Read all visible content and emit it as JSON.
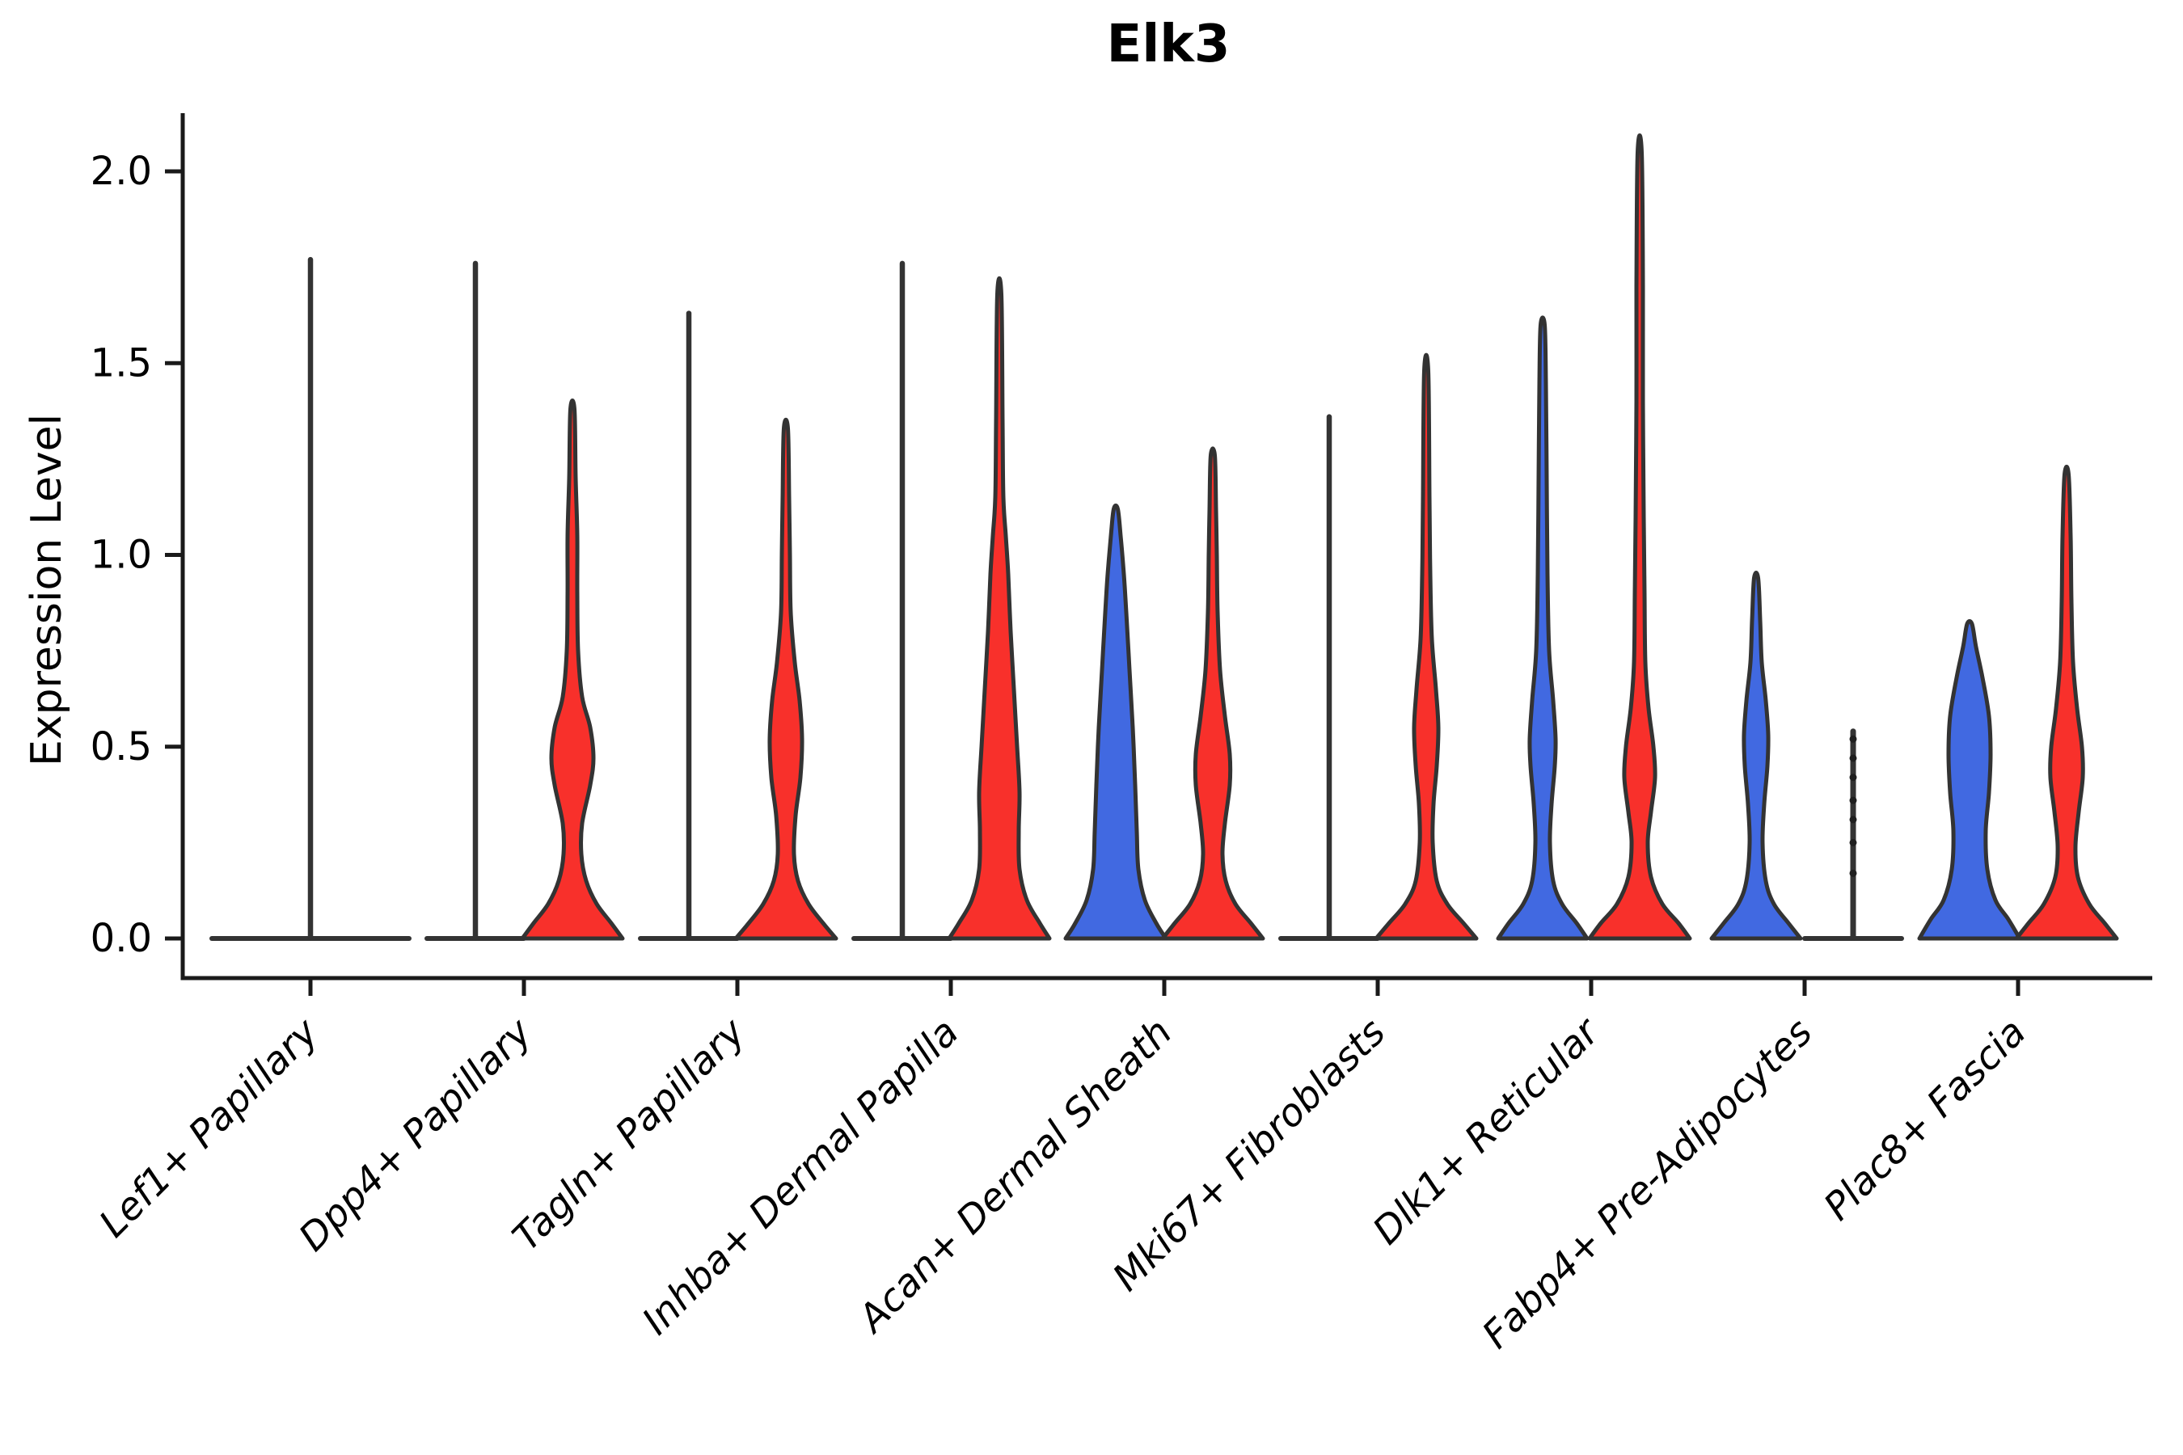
{
  "chart_data": {
    "type": "violin",
    "title": "Elk3",
    "ylabel": "Expression Level",
    "xlabel": "",
    "ylim": [
      0.0,
      2.0
    ],
    "grid": false,
    "legend": "none",
    "yticks": [
      {
        "value": 0.0,
        "label": "0.0"
      },
      {
        "value": 0.5,
        "label": "0.5"
      },
      {
        "value": 1.0,
        "label": "1.0"
      },
      {
        "value": 1.5,
        "label": "1.5"
      },
      {
        "value": 2.0,
        "label": "2.0"
      }
    ],
    "palette": {
      "red": "#F8302B",
      "blue": "#4169E1",
      "outline": "#333333",
      "axis": "#1a1a1a"
    },
    "categories": [
      "Lef1+ Papillary",
      "Dpp4+ Papillary",
      "Tagln+ Papillary",
      "Inhba+ Dermal Papilla",
      "Acan+ Dermal Sheath",
      "Mki67+ Fibroblasts",
      "Dlk1+ Reticular",
      "Fabp4+ Pre-Adipocytes",
      "Plac8+ Fascia"
    ],
    "groups": [
      {
        "category": "Lef1+ Papillary",
        "violins": [
          {
            "position": "center",
            "offset": 0,
            "half_width": 122,
            "type": "flat-spike",
            "color": "outline",
            "max": 1.77
          }
        ]
      },
      {
        "category": "Dpp4+ Papillary",
        "violins": [
          {
            "position": "left",
            "offset": -60,
            "half_width": 60,
            "type": "flat-spike",
            "color": "outline",
            "max": 1.76
          },
          {
            "position": "right",
            "offset": 60,
            "half_width": 62,
            "type": "violin",
            "color": "red",
            "max": 1.38,
            "profile": [
              [
                0,
                62
              ],
              [
                0.04,
                48
              ],
              [
                0.09,
                30
              ],
              [
                0.15,
                17
              ],
              [
                0.22,
                11
              ],
              [
                0.3,
                12
              ],
              [
                0.4,
                22
              ],
              [
                0.47,
                26
              ],
              [
                0.55,
                22
              ],
              [
                0.63,
                12
              ],
              [
                0.75,
                7
              ],
              [
                0.9,
                6
              ],
              [
                1.05,
                6
              ],
              [
                1.2,
                4
              ],
              [
                1.38,
                2.5
              ]
            ]
          }
        ]
      },
      {
        "category": "Tagln+ Papillary",
        "violins": [
          {
            "position": "left",
            "offset": -60,
            "half_width": 60,
            "type": "flat-spike",
            "color": "outline",
            "max": 1.63
          },
          {
            "position": "right",
            "offset": 60,
            "half_width": 62,
            "type": "violin",
            "color": "red",
            "max": 1.33,
            "profile": [
              [
                0,
                62
              ],
              [
                0.04,
                46
              ],
              [
                0.09,
                28
              ],
              [
                0.15,
                15
              ],
              [
                0.22,
                10
              ],
              [
                0.32,
                12
              ],
              [
                0.42,
                18
              ],
              [
                0.52,
                20
              ],
              [
                0.62,
                17
              ],
              [
                0.72,
                11
              ],
              [
                0.85,
                6
              ],
              [
                1.0,
                5
              ],
              [
                1.15,
                4
              ],
              [
                1.33,
                2.5
              ]
            ]
          }
        ]
      },
      {
        "category": "Inhba+ Dermal Papilla",
        "violins": [
          {
            "position": "left",
            "offset": -60,
            "half_width": 60,
            "type": "flat-spike",
            "color": "outline",
            "max": 1.76
          },
          {
            "position": "right",
            "offset": 60,
            "half_width": 62,
            "type": "violin",
            "color": "red",
            "max": 1.68,
            "profile": [
              [
                0,
                62
              ],
              [
                0.04,
                50
              ],
              [
                0.1,
                34
              ],
              [
                0.18,
                25
              ],
              [
                0.28,
                24
              ],
              [
                0.38,
                25
              ],
              [
                0.5,
                22
              ],
              [
                0.65,
                18
              ],
              [
                0.8,
                14
              ],
              [
                0.95,
                11
              ],
              [
                1.05,
                8
              ],
              [
                1.15,
                5
              ],
              [
                1.35,
                4
              ],
              [
                1.68,
                2.5
              ]
            ]
          }
        ]
      },
      {
        "category": "Acan+ Dermal Sheath",
        "violins": [
          {
            "position": "left",
            "offset": -60,
            "half_width": 62,
            "type": "violin",
            "color": "blue",
            "max": 1.12,
            "profile": [
              [
                0,
                62
              ],
              [
                0.04,
                50
              ],
              [
                0.1,
                36
              ],
              [
                0.18,
                28
              ],
              [
                0.28,
                26
              ],
              [
                0.4,
                24
              ],
              [
                0.55,
                21
              ],
              [
                0.7,
                17
              ],
              [
                0.85,
                13
              ],
              [
                0.95,
                10
              ],
              [
                1.05,
                6
              ],
              [
                1.12,
                2.5
              ]
            ]
          },
          {
            "position": "right",
            "offset": 60,
            "half_width": 62,
            "type": "violin",
            "color": "red",
            "max": 1.26,
            "profile": [
              [
                0,
                62
              ],
              [
                0.04,
                47
              ],
              [
                0.09,
                28
              ],
              [
                0.15,
                16
              ],
              [
                0.22,
                12
              ],
              [
                0.3,
                15
              ],
              [
                0.4,
                21
              ],
              [
                0.48,
                21
              ],
              [
                0.58,
                15
              ],
              [
                0.7,
                9
              ],
              [
                0.85,
                6
              ],
              [
                1.0,
                5
              ],
              [
                1.12,
                4
              ],
              [
                1.26,
                2.5
              ]
            ]
          }
        ]
      },
      {
        "category": "Mki67+ Fibroblasts",
        "violins": [
          {
            "position": "left",
            "offset": -60,
            "half_width": 60,
            "type": "flat-spike",
            "color": "outline",
            "max": 1.36
          },
          {
            "position": "right",
            "offset": 60,
            "half_width": 62,
            "type": "violin",
            "color": "red",
            "max": 1.48,
            "profile": [
              [
                0,
                62
              ],
              [
                0.04,
                46
              ],
              [
                0.09,
                26
              ],
              [
                0.15,
                13
              ],
              [
                0.25,
                8
              ],
              [
                0.35,
                9
              ],
              [
                0.45,
                13
              ],
              [
                0.55,
                15
              ],
              [
                0.65,
                12
              ],
              [
                0.78,
                7
              ],
              [
                0.95,
                5
              ],
              [
                1.15,
                4
              ],
              [
                1.48,
                2.5
              ]
            ]
          }
        ]
      },
      {
        "category": "Dlk1+ Reticular",
        "violins": [
          {
            "position": "left",
            "offset": -60,
            "half_width": 55,
            "type": "violin",
            "color": "blue",
            "max": 1.6,
            "profile": [
              [
                0,
                55
              ],
              [
                0.04,
                42
              ],
              [
                0.09,
                24
              ],
              [
                0.15,
                13
              ],
              [
                0.25,
                9
              ],
              [
                0.35,
                11
              ],
              [
                0.45,
                15
              ],
              [
                0.52,
                16
              ],
              [
                0.62,
                13
              ],
              [
                0.75,
                8
              ],
              [
                0.95,
                6
              ],
              [
                1.2,
                5
              ],
              [
                1.45,
                4
              ],
              [
                1.6,
                2.5
              ]
            ]
          },
          {
            "position": "right",
            "offset": 60,
            "half_width": 62,
            "type": "violin",
            "color": "red",
            "max": 2.05,
            "profile": [
              [
                0,
                62
              ],
              [
                0.04,
                48
              ],
              [
                0.09,
                28
              ],
              [
                0.16,
                14
              ],
              [
                0.25,
                10
              ],
              [
                0.33,
                14
              ],
              [
                0.42,
                19
              ],
              [
                0.5,
                17
              ],
              [
                0.6,
                11
              ],
              [
                0.72,
                7
              ],
              [
                0.9,
                6
              ],
              [
                1.1,
                5
              ],
              [
                1.4,
                4
              ],
              [
                1.7,
                4
              ],
              [
                2.05,
                2.5
              ]
            ]
          }
        ]
      },
      {
        "category": "Fabp4+ Pre-Adipocytes",
        "violins": [
          {
            "position": "left",
            "offset": -60,
            "half_width": 55,
            "type": "violin",
            "color": "blue",
            "max": 0.94,
            "profile": [
              [
                0,
                55
              ],
              [
                0.04,
                40
              ],
              [
                0.09,
                22
              ],
              [
                0.15,
                12
              ],
              [
                0.25,
                8
              ],
              [
                0.35,
                10
              ],
              [
                0.45,
                14
              ],
              [
                0.53,
                15
              ],
              [
                0.62,
                12
              ],
              [
                0.72,
                7
              ],
              [
                0.83,
                5
              ],
              [
                0.94,
                2.5
              ]
            ]
          },
          {
            "position": "right",
            "offset": 60,
            "half_width": 60,
            "type": "line-with-points",
            "color": "outline",
            "max": 0.54,
            "points": [
              0.17,
              0.25,
              0.31,
              0.36,
              0.42,
              0.47,
              0.52
            ]
          }
        ]
      },
      {
        "category": "Plac8+ Fascia",
        "violins": [
          {
            "position": "left",
            "offset": -60,
            "half_width": 62,
            "type": "violin",
            "color": "blue",
            "max": 0.82,
            "profile": [
              [
                0,
                62
              ],
              [
                0.05,
                48
              ],
              [
                0.1,
                32
              ],
              [
                0.18,
                22
              ],
              [
                0.28,
                20
              ],
              [
                0.38,
                24
              ],
              [
                0.48,
                26
              ],
              [
                0.58,
                24
              ],
              [
                0.68,
                16
              ],
              [
                0.76,
                8
              ],
              [
                0.82,
                3
              ]
            ]
          },
          {
            "position": "right",
            "offset": 60,
            "half_width": 62,
            "type": "violin",
            "color": "red",
            "max": 1.21,
            "profile": [
              [
                0,
                62
              ],
              [
                0.04,
                47
              ],
              [
                0.09,
                28
              ],
              [
                0.16,
                14
              ],
              [
                0.24,
                11
              ],
              [
                0.33,
                15
              ],
              [
                0.42,
                20
              ],
              [
                0.5,
                19
              ],
              [
                0.6,
                13
              ],
              [
                0.72,
                8
              ],
              [
                0.88,
                6
              ],
              [
                1.05,
                5
              ],
              [
                1.21,
                2.5
              ]
            ]
          }
        ]
      }
    ]
  }
}
